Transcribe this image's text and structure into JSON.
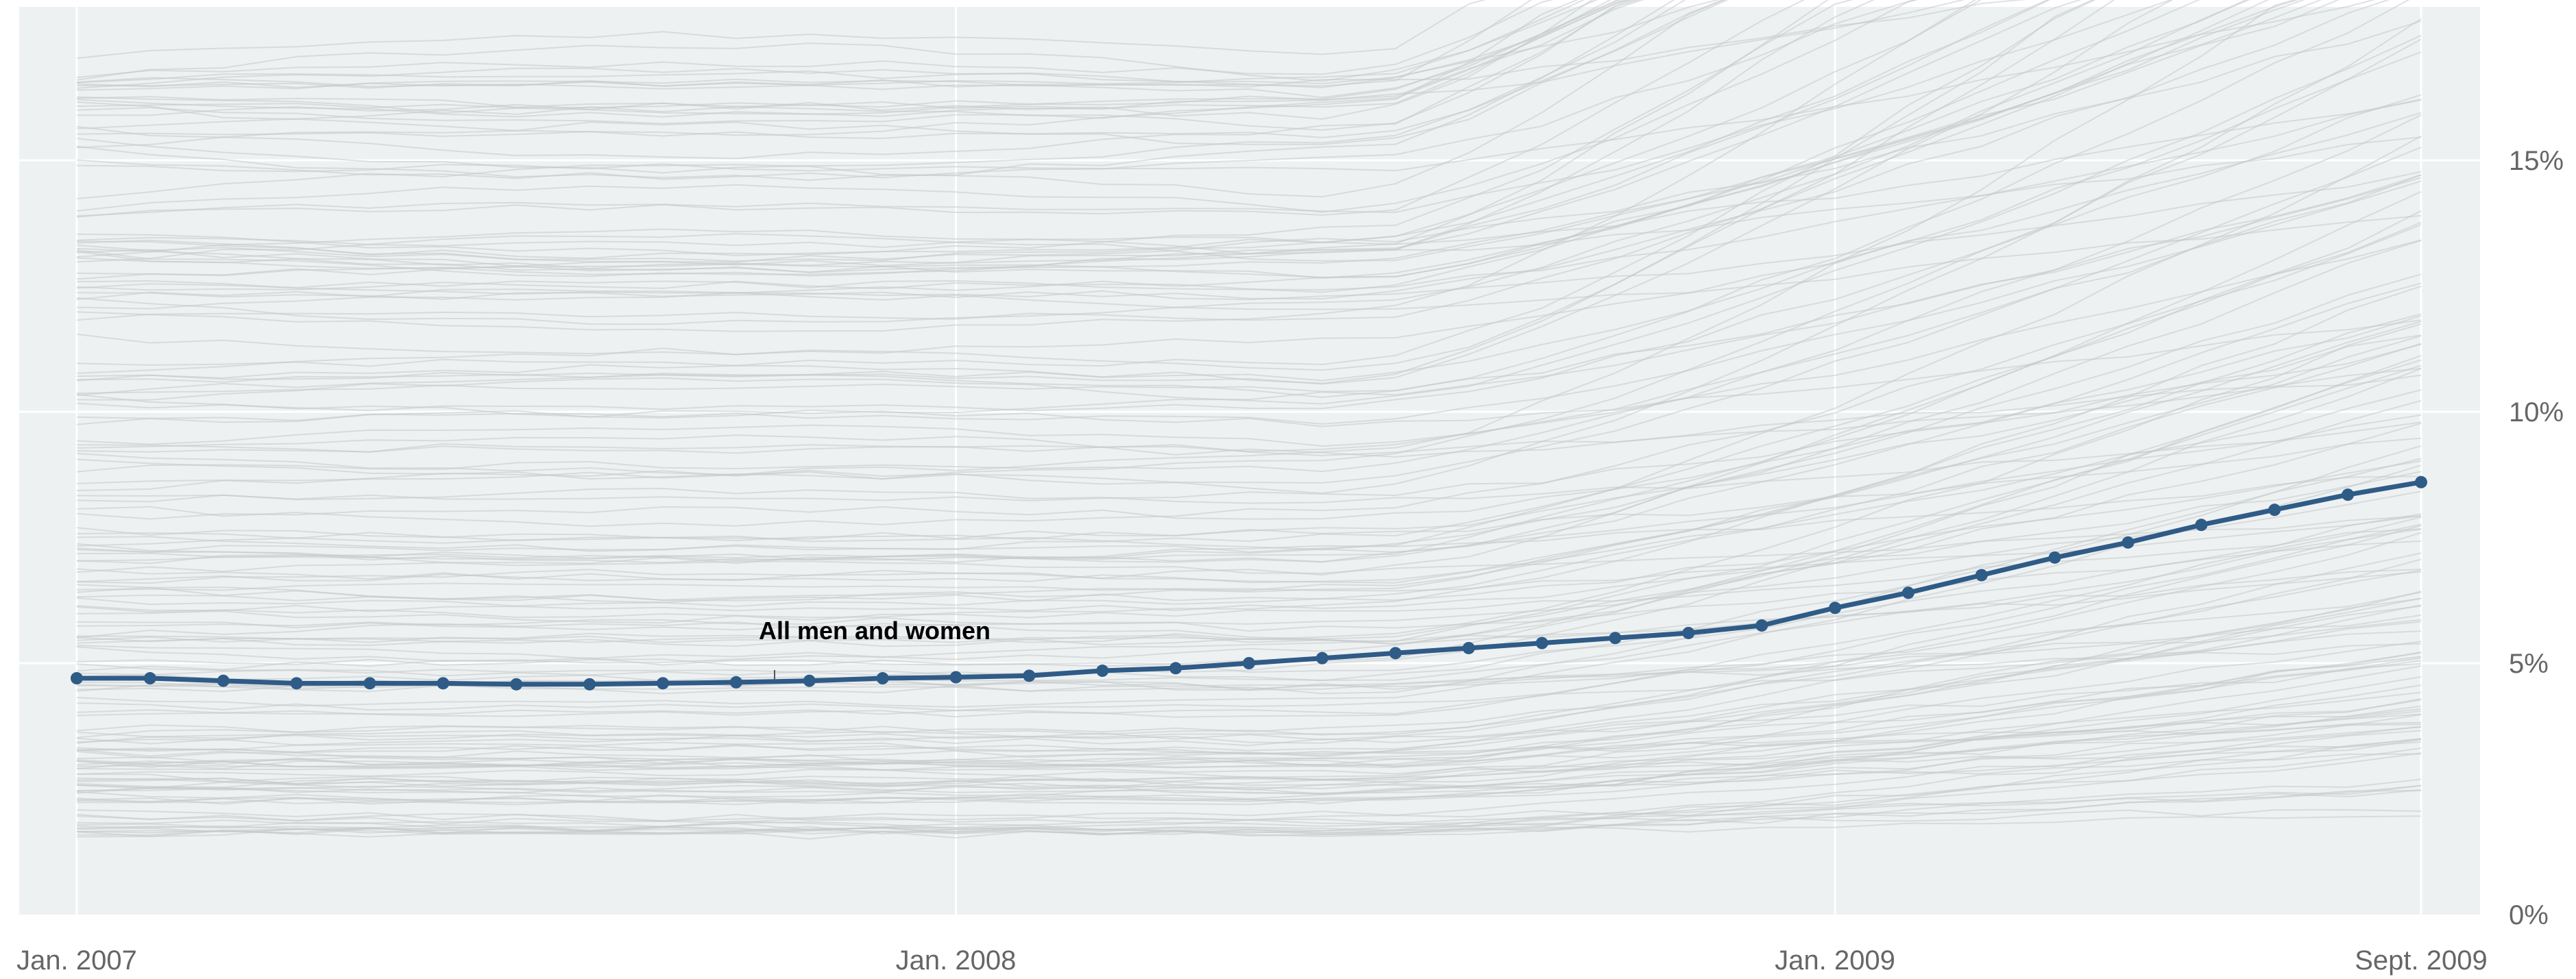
{
  "chart_data": {
    "type": "line",
    "title": "",
    "xlabel": "",
    "ylabel": "",
    "x_range": [
      "2007-01",
      "2009-09"
    ],
    "ylim": [
      0,
      18
    ],
    "grid": true,
    "x_ticks": [
      {
        "date": "2007-01",
        "label": "Jan. 2007"
      },
      {
        "date": "2008-01",
        "label": "Jan. 2008"
      },
      {
        "date": "2009-01",
        "label": "Jan. 2009"
      },
      {
        "date": "2009-09",
        "label": "Sept. 2009"
      }
    ],
    "y_ticks": [
      {
        "value": 0,
        "label": "0%"
      },
      {
        "value": 5,
        "label": "5%"
      },
      {
        "value": 10,
        "label": "10%"
      },
      {
        "value": 15,
        "label": "15%"
      }
    ],
    "series": [
      {
        "name": "All men and women",
        "color": "#2f5b87",
        "x": [
          "2007-01",
          "2007-02",
          "2007-03",
          "2007-04",
          "2007-05",
          "2007-06",
          "2007-07",
          "2007-08",
          "2007-09",
          "2007-10",
          "2007-11",
          "2007-12",
          "2008-01",
          "2008-02",
          "2008-03",
          "2008-04",
          "2008-05",
          "2008-06",
          "2008-07",
          "2008-08",
          "2008-09",
          "2008-10",
          "2008-11",
          "2008-12",
          "2009-01",
          "2009-02",
          "2009-03",
          "2009-04",
          "2009-05",
          "2009-06",
          "2009-07",
          "2009-08",
          "2009-09"
        ],
        "values": [
          4.7,
          4.7,
          4.65,
          4.6,
          4.6,
          4.6,
          4.58,
          4.58,
          4.6,
          4.62,
          4.65,
          4.7,
          4.72,
          4.75,
          4.85,
          4.9,
          5.0,
          5.1,
          5.2,
          5.3,
          5.4,
          5.5,
          5.6,
          5.75,
          6.1,
          6.4,
          6.75,
          7.1,
          7.4,
          7.75,
          8.05,
          8.35,
          8.6
        ]
      }
    ],
    "background_series_note_color": "#c8cbcd"
  },
  "annotation": {
    "label": "All men and women"
  }
}
